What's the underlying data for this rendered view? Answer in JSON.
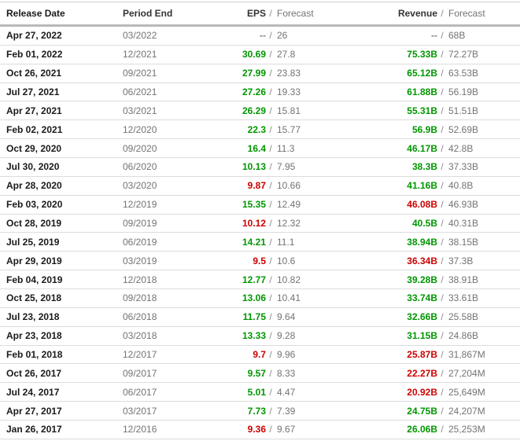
{
  "table": {
    "columns": {
      "release_date": "Release Date",
      "period_end": "Period End",
      "eps": "EPS",
      "revenue": "Revenue",
      "forecast": "Forecast",
      "separator": "/"
    },
    "colors": {
      "beat": "#009600",
      "miss": "#cc0000",
      "neutral": "#808080"
    },
    "rows": [
      {
        "release_date": "Apr 27, 2022",
        "period_end": "03/2022",
        "eps_actual": "--",
        "eps_status": "neutral",
        "eps_forecast": "26",
        "revenue_actual": "--",
        "revenue_status": "neutral",
        "revenue_forecast": "68B"
      },
      {
        "release_date": "Feb 01, 2022",
        "period_end": "12/2021",
        "eps_actual": "30.69",
        "eps_status": "beat",
        "eps_forecast": "27.8",
        "revenue_actual": "75.33B",
        "revenue_status": "beat",
        "revenue_forecast": "72.27B"
      },
      {
        "release_date": "Oct 26, 2021",
        "period_end": "09/2021",
        "eps_actual": "27.99",
        "eps_status": "beat",
        "eps_forecast": "23.83",
        "revenue_actual": "65.12B",
        "revenue_status": "beat",
        "revenue_forecast": "63.53B"
      },
      {
        "release_date": "Jul 27, 2021",
        "period_end": "06/2021",
        "eps_actual": "27.26",
        "eps_status": "beat",
        "eps_forecast": "19.33",
        "revenue_actual": "61.88B",
        "revenue_status": "beat",
        "revenue_forecast": "56.19B"
      },
      {
        "release_date": "Apr 27, 2021",
        "period_end": "03/2021",
        "eps_actual": "26.29",
        "eps_status": "beat",
        "eps_forecast": "15.81",
        "revenue_actual": "55.31B",
        "revenue_status": "beat",
        "revenue_forecast": "51.51B"
      },
      {
        "release_date": "Feb 02, 2021",
        "period_end": "12/2020",
        "eps_actual": "22.3",
        "eps_status": "beat",
        "eps_forecast": "15.77",
        "revenue_actual": "56.9B",
        "revenue_status": "beat",
        "revenue_forecast": "52.69B"
      },
      {
        "release_date": "Oct 29, 2020",
        "period_end": "09/2020",
        "eps_actual": "16.4",
        "eps_status": "beat",
        "eps_forecast": "11.3",
        "revenue_actual": "46.17B",
        "revenue_status": "beat",
        "revenue_forecast": "42.8B"
      },
      {
        "release_date": "Jul 30, 2020",
        "period_end": "06/2020",
        "eps_actual": "10.13",
        "eps_status": "beat",
        "eps_forecast": "7.95",
        "revenue_actual": "38.3B",
        "revenue_status": "beat",
        "revenue_forecast": "37.33B"
      },
      {
        "release_date": "Apr 28, 2020",
        "period_end": "03/2020",
        "eps_actual": "9.87",
        "eps_status": "miss",
        "eps_forecast": "10.66",
        "revenue_actual": "41.16B",
        "revenue_status": "beat",
        "revenue_forecast": "40.8B"
      },
      {
        "release_date": "Feb 03, 2020",
        "period_end": "12/2019",
        "eps_actual": "15.35",
        "eps_status": "beat",
        "eps_forecast": "12.49",
        "revenue_actual": "46.08B",
        "revenue_status": "miss",
        "revenue_forecast": "46.93B"
      },
      {
        "release_date": "Oct 28, 2019",
        "period_end": "09/2019",
        "eps_actual": "10.12",
        "eps_status": "miss",
        "eps_forecast": "12.32",
        "revenue_actual": "40.5B",
        "revenue_status": "beat",
        "revenue_forecast": "40.31B"
      },
      {
        "release_date": "Jul 25, 2019",
        "period_end": "06/2019",
        "eps_actual": "14.21",
        "eps_status": "beat",
        "eps_forecast": "11.1",
        "revenue_actual": "38.94B",
        "revenue_status": "beat",
        "revenue_forecast": "38.15B"
      },
      {
        "release_date": "Apr 29, 2019",
        "period_end": "03/2019",
        "eps_actual": "9.5",
        "eps_status": "miss",
        "eps_forecast": "10.6",
        "revenue_actual": "36.34B",
        "revenue_status": "miss",
        "revenue_forecast": "37.3B"
      },
      {
        "release_date": "Feb 04, 2019",
        "period_end": "12/2018",
        "eps_actual": "12.77",
        "eps_status": "beat",
        "eps_forecast": "10.82",
        "revenue_actual": "39.28B",
        "revenue_status": "beat",
        "revenue_forecast": "38.91B"
      },
      {
        "release_date": "Oct 25, 2018",
        "period_end": "09/2018",
        "eps_actual": "13.06",
        "eps_status": "beat",
        "eps_forecast": "10.41",
        "revenue_actual": "33.74B",
        "revenue_status": "beat",
        "revenue_forecast": "33.61B"
      },
      {
        "release_date": "Jul 23, 2018",
        "period_end": "06/2018",
        "eps_actual": "11.75",
        "eps_status": "beat",
        "eps_forecast": "9.64",
        "revenue_actual": "32.66B",
        "revenue_status": "beat",
        "revenue_forecast": "25.58B"
      },
      {
        "release_date": "Apr 23, 2018",
        "period_end": "03/2018",
        "eps_actual": "13.33",
        "eps_status": "beat",
        "eps_forecast": "9.28",
        "revenue_actual": "31.15B",
        "revenue_status": "beat",
        "revenue_forecast": "24.86B"
      },
      {
        "release_date": "Feb 01, 2018",
        "period_end": "12/2017",
        "eps_actual": "9.7",
        "eps_status": "miss",
        "eps_forecast": "9.96",
        "revenue_actual": "25.87B",
        "revenue_status": "miss",
        "revenue_forecast": "31,867M"
      },
      {
        "release_date": "Oct 26, 2017",
        "period_end": "09/2017",
        "eps_actual": "9.57",
        "eps_status": "beat",
        "eps_forecast": "8.33",
        "revenue_actual": "22.27B",
        "revenue_status": "miss",
        "revenue_forecast": "27,204M"
      },
      {
        "release_date": "Jul 24, 2017",
        "period_end": "06/2017",
        "eps_actual": "5.01",
        "eps_status": "beat",
        "eps_forecast": "4.47",
        "revenue_actual": "20.92B",
        "revenue_status": "miss",
        "revenue_forecast": "25,649M"
      },
      {
        "release_date": "Apr 27, 2017",
        "period_end": "03/2017",
        "eps_actual": "7.73",
        "eps_status": "beat",
        "eps_forecast": "7.39",
        "revenue_actual": "24.75B",
        "revenue_status": "beat",
        "revenue_forecast": "24,207M"
      },
      {
        "release_date": "Jan 26, 2017",
        "period_end": "12/2016",
        "eps_actual": "9.36",
        "eps_status": "miss",
        "eps_forecast": "9.67",
        "revenue_actual": "26.06B",
        "revenue_status": "beat",
        "revenue_forecast": "25,253M"
      }
    ]
  }
}
